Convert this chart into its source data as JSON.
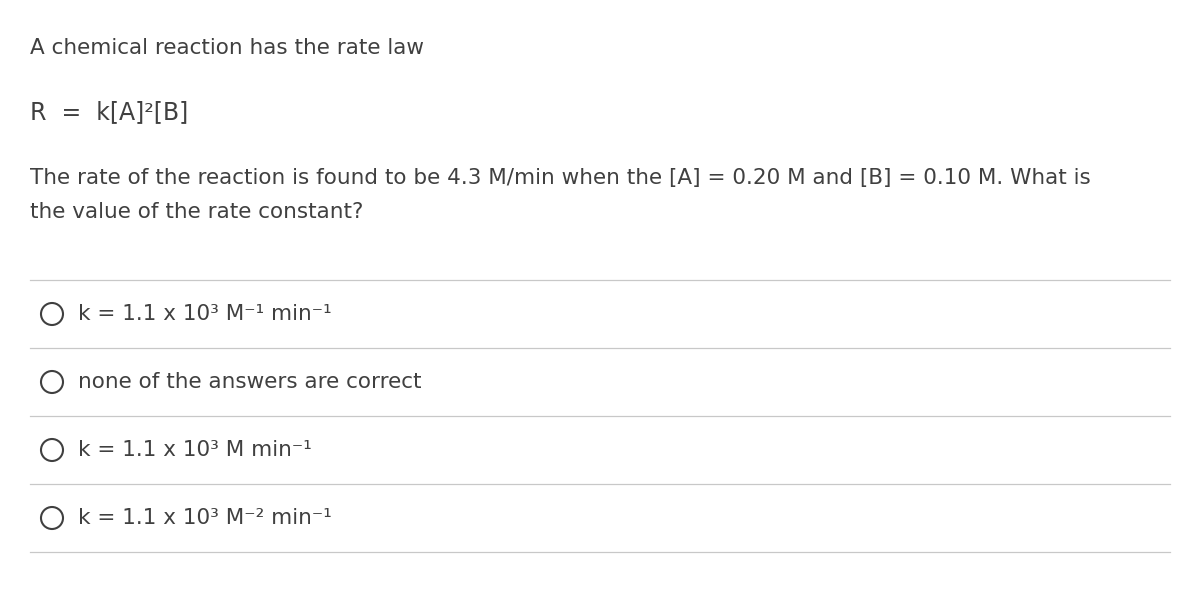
{
  "bg_color": "#ffffff",
  "text_color": "#404040",
  "line_color": "#c8c8c8",
  "title_line1": "A chemical reaction has the rate law",
  "title_line2": "R  =  k[A]²[B]",
  "desc_line1": "The rate of the reaction is found to be 4.3 M/min when the [A] = 0.20 M and [B] = 0.10 M. What is",
  "desc_line2": "the value of the rate constant?",
  "options": [
    "k = 1.1 x 10³ M⁻¹ min⁻¹",
    "none of the answers are correct",
    "k = 1.1 x 10³ M min⁻¹",
    "k = 1.1 x 10³ M⁻² min⁻¹"
  ],
  "font_size_body": 15.5,
  "font_size_ratelaw": 17,
  "font_family": "DejaVu Sans"
}
